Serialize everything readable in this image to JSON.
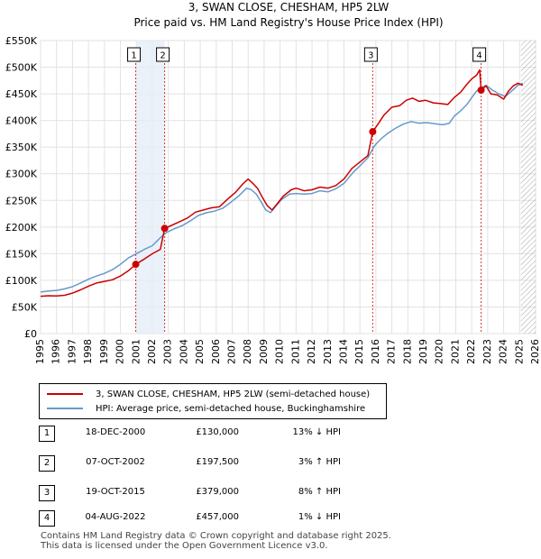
{
  "chart_data": {
    "type": "line",
    "title": "3, SWAN CLOSE, CHESHAM, HP5 2LW",
    "subtitle": "Price paid vs. HM Land Registry's House Price Index (HPI)",
    "xlim": [
      1995,
      2026
    ],
    "ylim": [
      0,
      550000
    ],
    "x_ticks": [
      "1995",
      "1996",
      "1997",
      "1998",
      "1999",
      "2000",
      "2001",
      "2002",
      "2003",
      "2004",
      "2005",
      "2006",
      "2007",
      "2008",
      "2009",
      "2010",
      "2011",
      "2012",
      "2013",
      "2014",
      "2015",
      "2016",
      "2017",
      "2018",
      "2019",
      "2020",
      "2021",
      "2022",
      "2023",
      "2024",
      "2025",
      "2026"
    ],
    "y_ticks": [
      {
        "value": 0,
        "label": "£0"
      },
      {
        "value": 50000,
        "label": "£50K"
      },
      {
        "value": 100000,
        "label": "£100K"
      },
      {
        "value": 150000,
        "label": "£150K"
      },
      {
        "value": 200000,
        "label": "£200K"
      },
      {
        "value": 250000,
        "label": "£250K"
      },
      {
        "value": 300000,
        "label": "£300K"
      },
      {
        "value": 350000,
        "label": "£350K"
      },
      {
        "value": 400000,
        "label": "£400K"
      },
      {
        "value": 450000,
        "label": "£450K"
      },
      {
        "value": 500000,
        "label": "£500K"
      },
      {
        "value": 550000,
        "label": "£550K"
      }
    ],
    "grid": true,
    "series": [
      {
        "name": "3, SWAN CLOSE, CHESHAM, HP5 2LW (semi-detached house)",
        "color": "#cc0000",
        "points": [
          [
            1995.0,
            70000
          ],
          [
            1995.5,
            71000
          ],
          [
            1996.0,
            70500
          ],
          [
            1996.5,
            72000
          ],
          [
            1997.0,
            76000
          ],
          [
            1997.5,
            82000
          ],
          [
            1998.0,
            89000
          ],
          [
            1998.5,
            95000
          ],
          [
            1999.0,
            98000
          ],
          [
            1999.5,
            101000
          ],
          [
            2000.0,
            108000
          ],
          [
            2000.5,
            118000
          ],
          [
            2000.96,
            130000
          ],
          [
            2001.5,
            140000
          ],
          [
            2002.0,
            150000
          ],
          [
            2002.5,
            158000
          ],
          [
            2002.77,
            197500
          ],
          [
            2003.2,
            203000
          ],
          [
            2003.7,
            210000
          ],
          [
            2004.2,
            217000
          ],
          [
            2004.7,
            228000
          ],
          [
            2005.2,
            232000
          ],
          [
            2005.7,
            236000
          ],
          [
            2006.2,
            238000
          ],
          [
            2006.7,
            252000
          ],
          [
            2007.2,
            265000
          ],
          [
            2007.7,
            282000
          ],
          [
            2008.0,
            290000
          ],
          [
            2008.3,
            282000
          ],
          [
            2008.6,
            272000
          ],
          [
            2008.9,
            255000
          ],
          [
            2009.2,
            240000
          ],
          [
            2009.5,
            232000
          ],
          [
            2009.8,
            243000
          ],
          [
            2010.2,
            258000
          ],
          [
            2010.7,
            270000
          ],
          [
            2011.0,
            273000
          ],
          [
            2011.5,
            268000
          ],
          [
            2012.0,
            270000
          ],
          [
            2012.5,
            275000
          ],
          [
            2013.0,
            273000
          ],
          [
            2013.5,
            278000
          ],
          [
            2014.0,
            290000
          ],
          [
            2014.5,
            310000
          ],
          [
            2015.0,
            322000
          ],
          [
            2015.5,
            334000
          ],
          [
            2015.8,
            379000
          ],
          [
            2016.1,
            392000
          ],
          [
            2016.5,
            410000
          ],
          [
            2017.0,
            425000
          ],
          [
            2017.5,
            428000
          ],
          [
            2017.9,
            438000
          ],
          [
            2018.3,
            442000
          ],
          [
            2018.7,
            436000
          ],
          [
            2019.1,
            438000
          ],
          [
            2019.6,
            433000
          ],
          [
            2020.0,
            432000
          ],
          [
            2020.5,
            430000
          ],
          [
            2020.9,
            443000
          ],
          [
            2021.3,
            453000
          ],
          [
            2021.7,
            468000
          ],
          [
            2022.0,
            478000
          ],
          [
            2022.3,
            485000
          ],
          [
            2022.5,
            495000
          ],
          [
            2022.59,
            457000
          ],
          [
            2022.9,
            465000
          ],
          [
            2023.2,
            450000
          ],
          [
            2023.6,
            448000
          ],
          [
            2024.0,
            440000
          ],
          [
            2024.3,
            455000
          ],
          [
            2024.6,
            465000
          ],
          [
            2024.9,
            470000
          ],
          [
            2025.2,
            466000
          ]
        ]
      },
      {
        "name": "HPI: Average price, semi-detached house, Buckinghamshire",
        "color": "#6699cc",
        "points": [
          [
            1995.0,
            78000
          ],
          [
            1995.5,
            80000
          ],
          [
            1996.0,
            81000
          ],
          [
            1996.5,
            84000
          ],
          [
            1997.0,
            88000
          ],
          [
            1997.5,
            95000
          ],
          [
            1998.0,
            102000
          ],
          [
            1998.5,
            108000
          ],
          [
            1999.0,
            113000
          ],
          [
            1999.5,
            120000
          ],
          [
            2000.0,
            130000
          ],
          [
            2000.5,
            142000
          ],
          [
            2001.0,
            150000
          ],
          [
            2001.5,
            158000
          ],
          [
            2002.0,
            165000
          ],
          [
            2002.5,
            180000
          ],
          [
            2002.9,
            190000
          ],
          [
            2003.4,
            197000
          ],
          [
            2003.9,
            203000
          ],
          [
            2004.4,
            212000
          ],
          [
            2004.9,
            222000
          ],
          [
            2005.4,
            227000
          ],
          [
            2005.9,
            230000
          ],
          [
            2006.4,
            235000
          ],
          [
            2006.9,
            246000
          ],
          [
            2007.4,
            258000
          ],
          [
            2007.9,
            273000
          ],
          [
            2008.2,
            270000
          ],
          [
            2008.5,
            262000
          ],
          [
            2008.8,
            248000
          ],
          [
            2009.1,
            232000
          ],
          [
            2009.4,
            227000
          ],
          [
            2009.7,
            238000
          ],
          [
            2010.1,
            252000
          ],
          [
            2010.6,
            262000
          ],
          [
            2011.0,
            263000
          ],
          [
            2011.5,
            262000
          ],
          [
            2012.0,
            263000
          ],
          [
            2012.5,
            268000
          ],
          [
            2013.0,
            266000
          ],
          [
            2013.5,
            272000
          ],
          [
            2014.0,
            282000
          ],
          [
            2014.5,
            300000
          ],
          [
            2015.0,
            315000
          ],
          [
            2015.5,
            330000
          ],
          [
            2015.9,
            352000
          ],
          [
            2016.3,
            365000
          ],
          [
            2016.7,
            375000
          ],
          [
            2017.2,
            385000
          ],
          [
            2017.7,
            393000
          ],
          [
            2018.2,
            398000
          ],
          [
            2018.7,
            395000
          ],
          [
            2019.2,
            396000
          ],
          [
            2019.7,
            394000
          ],
          [
            2020.2,
            392000
          ],
          [
            2020.6,
            395000
          ],
          [
            2020.9,
            408000
          ],
          [
            2021.3,
            418000
          ],
          [
            2021.7,
            430000
          ],
          [
            2022.0,
            443000
          ],
          [
            2022.3,
            455000
          ],
          [
            2022.6,
            462000
          ],
          [
            2022.9,
            466000
          ],
          [
            2023.3,
            457000
          ],
          [
            2023.7,
            450000
          ],
          [
            2024.1,
            445000
          ],
          [
            2024.5,
            455000
          ],
          [
            2024.9,
            466000
          ],
          [
            2025.2,
            470000
          ]
        ]
      }
    ],
    "sale_markers": [
      {
        "label": "1",
        "x": 2000.96,
        "y": 130000
      },
      {
        "label": "2",
        "x": 2002.77,
        "y": 197500
      },
      {
        "label": "3",
        "x": 2015.8,
        "y": 379000
      },
      {
        "label": "4",
        "x": 2022.59,
        "y": 457000
      }
    ],
    "shaded_ranges": [
      {
        "from": 2000.96,
        "to": 2002.77
      },
      {
        "from": 2025.08,
        "to": 2026,
        "hatched": true
      }
    ]
  },
  "legend": {
    "items": [
      {
        "label": "3, SWAN CLOSE, CHESHAM, HP5 2LW (semi-detached house)",
        "color": "#cc0000"
      },
      {
        "label": "HPI: Average price, semi-detached house, Buckinghamshire",
        "color": "#6699cc"
      }
    ]
  },
  "sales": [
    {
      "num": "1",
      "date": "18-DEC-2000",
      "price": "£130,000",
      "hpi": "13% ↓ HPI"
    },
    {
      "num": "2",
      "date": "07-OCT-2002",
      "price": "£197,500",
      "hpi": "3% ↑ HPI"
    },
    {
      "num": "3",
      "date": "19-OCT-2015",
      "price": "£379,000",
      "hpi": "8% ↑ HPI"
    },
    {
      "num": "4",
      "date": "04-AUG-2022",
      "price": "£457,000",
      "hpi": "1% ↓ HPI"
    }
  ],
  "footer": {
    "line1": "Contains HM Land Registry data © Crown copyright and database right 2025.",
    "line2": "This data is licensed under the Open Government Licence v3.0."
  }
}
